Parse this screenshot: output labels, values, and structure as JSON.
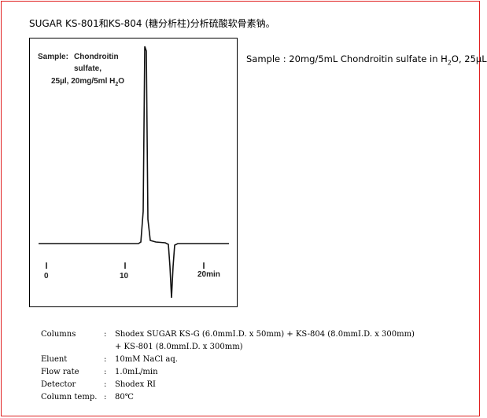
{
  "title": "SUGAR KS-801和KS-804 (糖分析柱)分析硫酸软骨素钠。",
  "chart": {
    "sample_lines": [
      "Sample:",
      "Chondroitin",
      "sulfate,",
      "25µl, 20mg/5ml H",
      "2",
      "O"
    ],
    "x_ticks": [
      "0",
      "10",
      "20min"
    ]
  },
  "sample_note": {
    "prefix": "Sample : 20mg/5mL Chondroitin sulfate in H",
    "sub": "2",
    "suffix": "O, 25µL"
  },
  "conditions": [
    {
      "label": "Columns",
      "value": "Shodex SUGAR KS-G (6.0mmI.D. x 50mm) + KS-804 (8.0mmI.D. x 300mm)"
    },
    {
      "label": "",
      "value": "+ KS-801 (8.0mmI.D. x 300mm)"
    },
    {
      "label": "Eluent",
      "value": "10mM NaCl aq."
    },
    {
      "label": "Flow rate",
      "value": "1.0mL/min"
    },
    {
      "label": "Detector",
      "value": "Shodex RI"
    },
    {
      "label": "Column temp.",
      "value": "80℃"
    }
  ]
}
